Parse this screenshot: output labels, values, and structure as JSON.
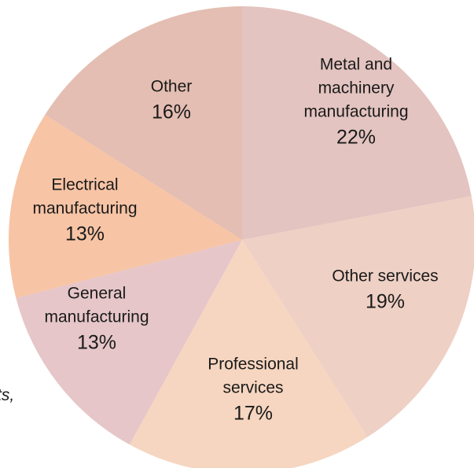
{
  "chart_data": {
    "type": "pie",
    "start_angle_deg": 0,
    "direction": "clockwise",
    "slices": [
      {
        "label": [
          "Metal and",
          "machinery",
          "manufacturing"
        ],
        "value": 22,
        "value_text": "22%",
        "color": "#e3c4c0"
      },
      {
        "label": [
          "Other services"
        ],
        "value": 19,
        "value_text": "19%",
        "color": "#eed0c4"
      },
      {
        "label": [
          "Professional",
          "services"
        ],
        "value": 17,
        "value_text": "17%",
        "color": "#f6d6c0"
      },
      {
        "label": [
          "General",
          "manufacturing"
        ],
        "value": 13,
        "value_text": "13%",
        "color": "#e6c6c8"
      },
      {
        "label": [
          "Electrical",
          "manufacturing"
        ],
        "value": 13,
        "value_text": "13%",
        "color": "#f7c4a5"
      },
      {
        "label": [
          "Other"
        ],
        "value": 16,
        "value_text": "16%",
        "color": "#e4beb2"
      }
    ]
  },
  "cut_text": "ts,"
}
